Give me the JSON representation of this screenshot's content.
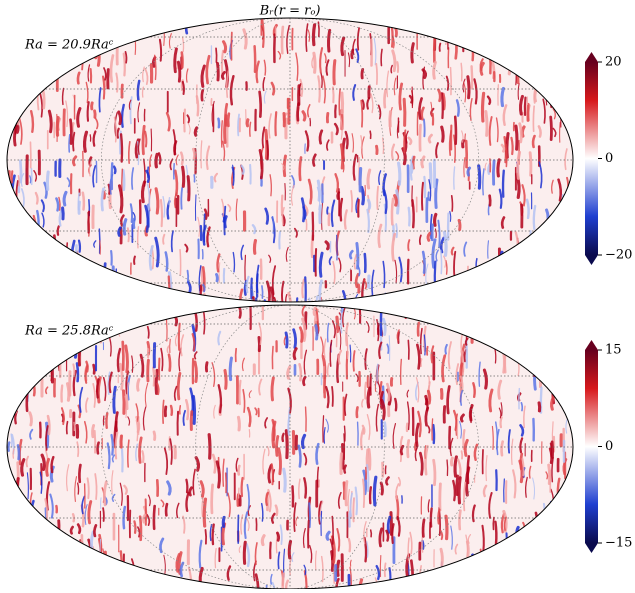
{
  "title": "Bᵣ(r = rₒ)",
  "panels": [
    {
      "label": "Ra = 20.9Raᶜ",
      "clim": [
        -20,
        20
      ],
      "ticks": [
        20,
        0,
        {
          "value": -20,
          "label": "−20"
        }
      ]
    },
    {
      "label": "Ra = 25.8Raᶜ",
      "clim": [
        -15,
        15
      ],
      "ticks": [
        15,
        0,
        {
          "value": -15,
          "label": "−15"
        }
      ]
    }
  ]
}
